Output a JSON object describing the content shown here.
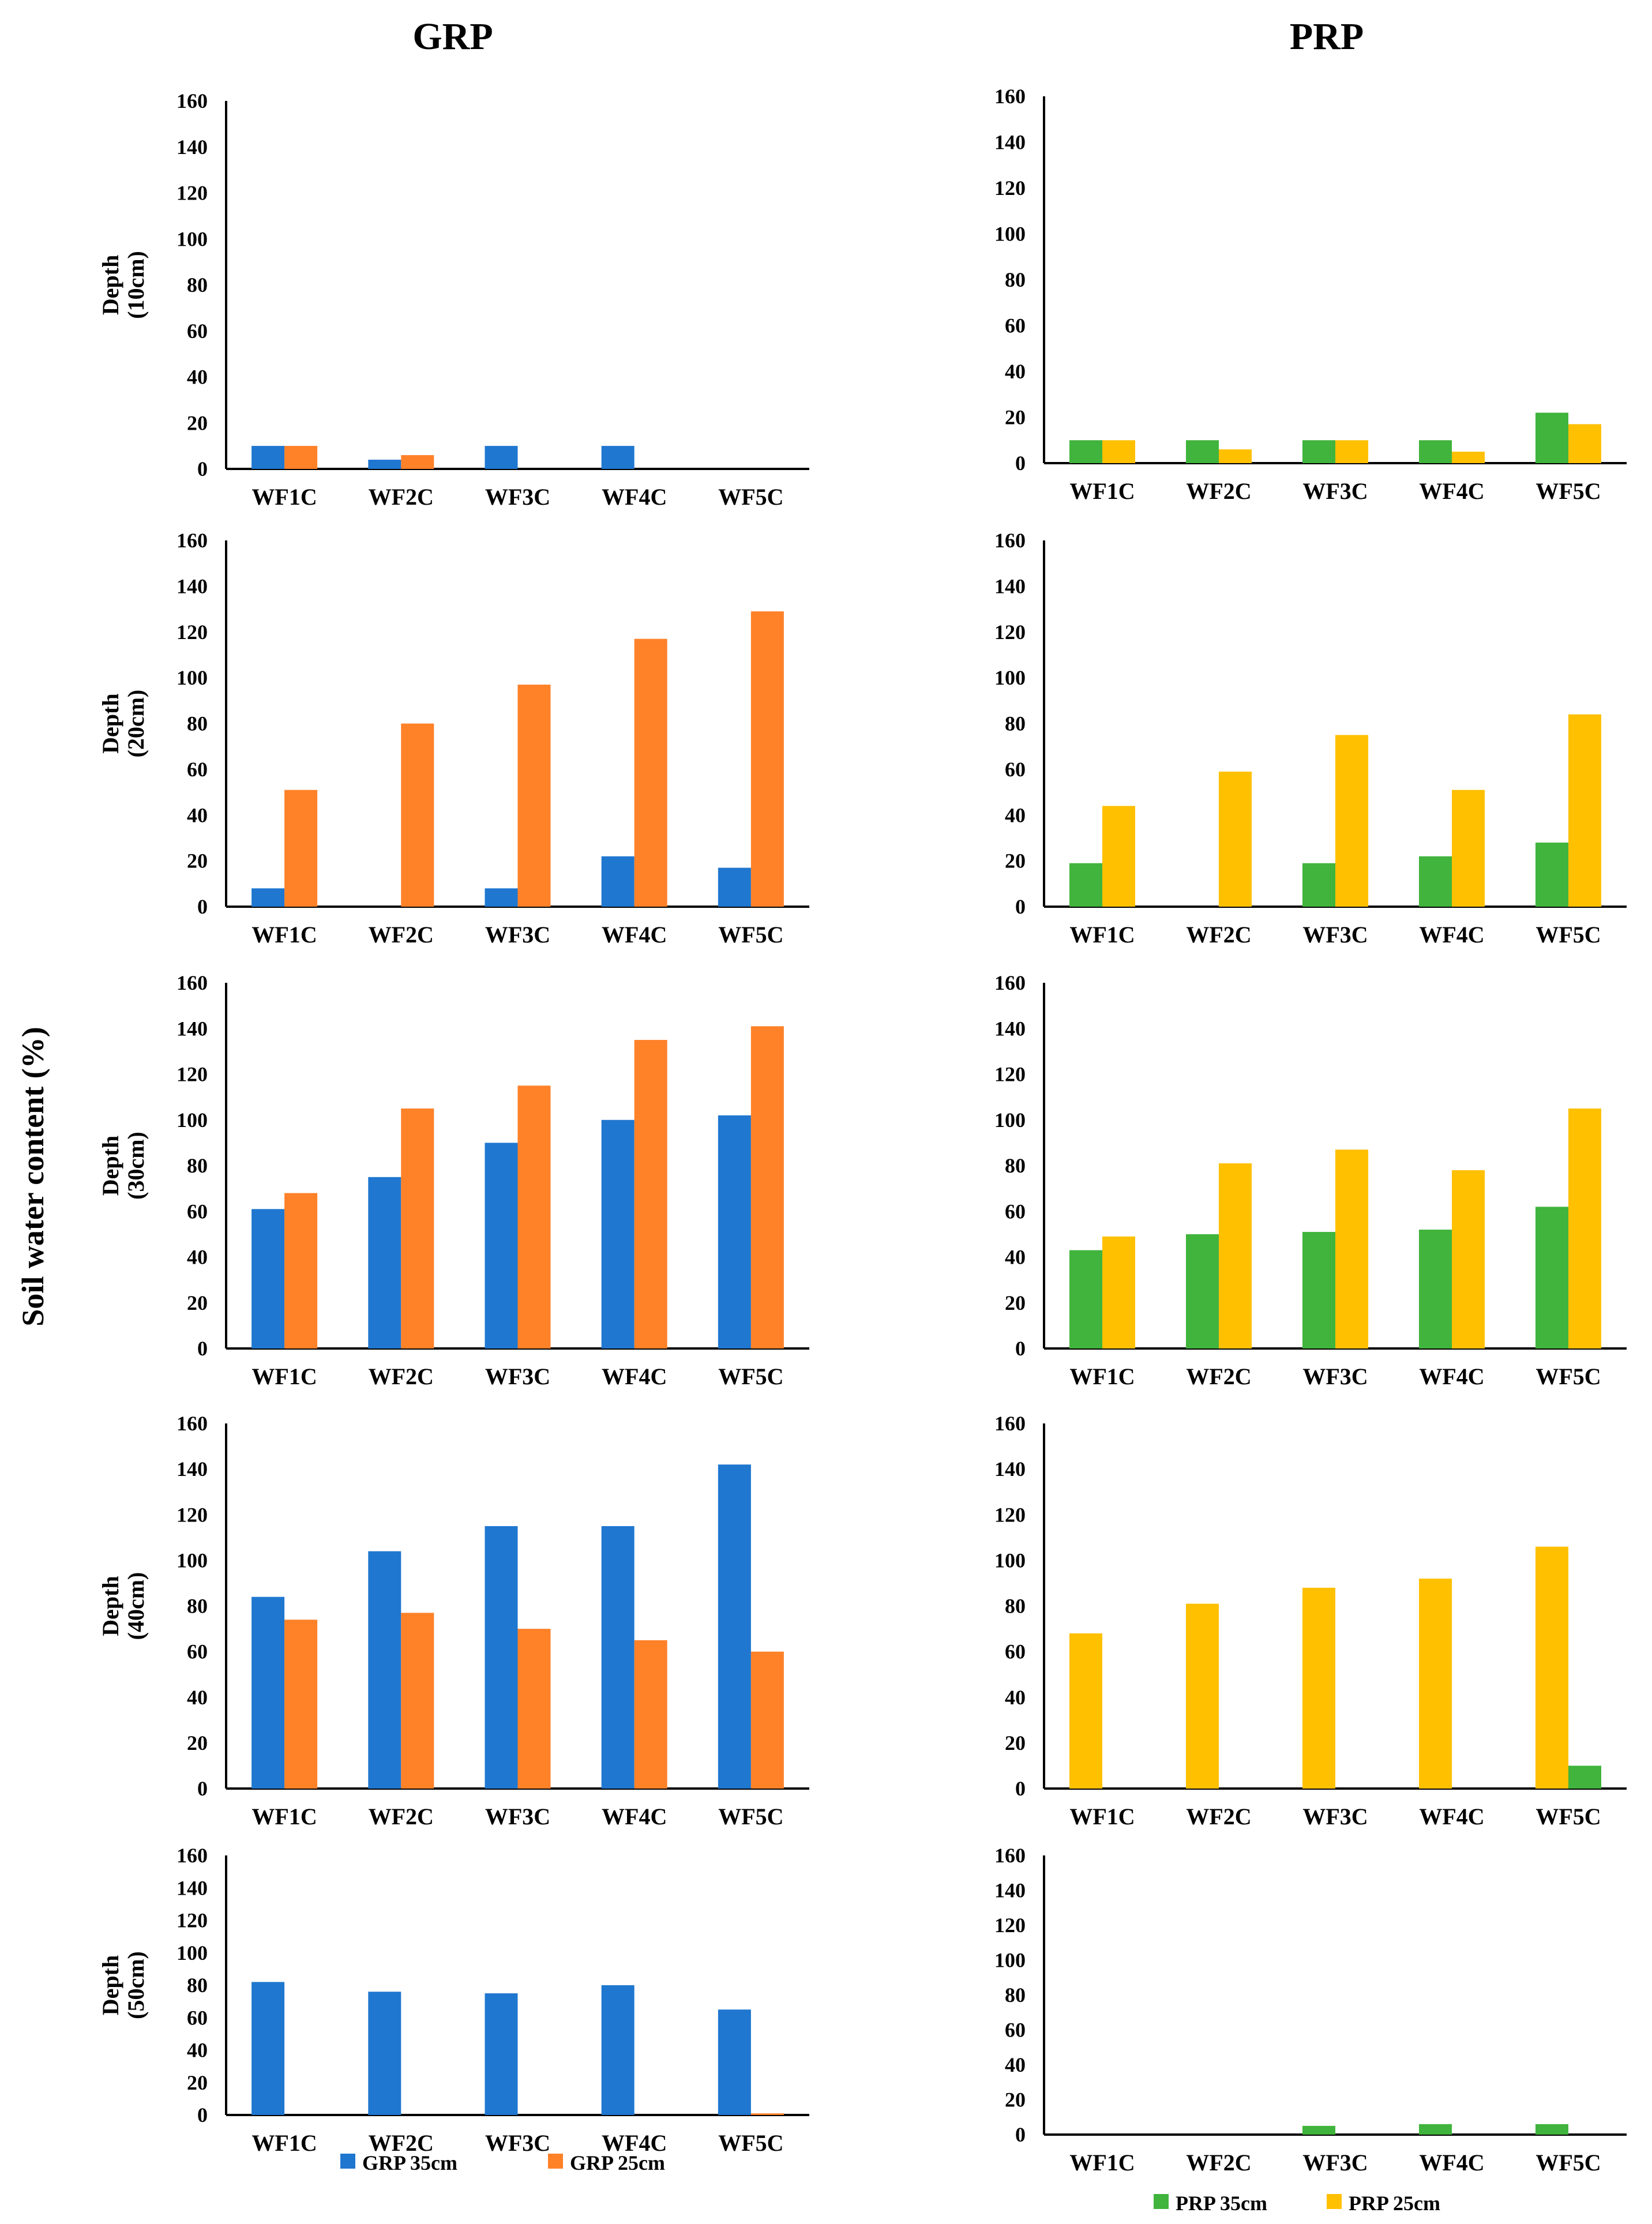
{
  "figure": {
    "left_title": "GRP",
    "right_title": "PRP",
    "y_label": "Soil water content (%)"
  },
  "legend": {
    "grp": [
      {
        "name": "GRP 35cm",
        "color": "#1F77D0"
      },
      {
        "name": "GRP 25cm",
        "color": "#FF8128"
      }
    ],
    "prp": [
      {
        "name": "PRP  35cm",
        "color": "#40B43C"
      },
      {
        "name": "PRP 25cm",
        "color": "#FFC000"
      }
    ]
  },
  "chart_data": [
    {
      "type": "bar",
      "group": "GRP",
      "panel": "10cm",
      "ylabel": "Depth (10cm)",
      "categories": [
        "WF1C",
        "WF2C",
        "WF3C",
        "WF4C",
        "WF5C"
      ],
      "series": [
        {
          "name": "GRP 35cm",
          "values": [
            10,
            4,
            10,
            10,
            0
          ]
        },
        {
          "name": "GRP 25cm",
          "values": [
            10,
            6,
            0,
            0,
            0
          ]
        }
      ],
      "yticks": [
        "0",
        "20",
        "40",
        "60",
        "80",
        "100",
        "120",
        "140",
        "160"
      ],
      "ylim": [
        0,
        160
      ]
    },
    {
      "type": "bar",
      "group": "PRP",
      "panel": "10cm",
      "ylabel": "",
      "categories": [
        "WF1C",
        "WF2C",
        "WF3C",
        "WF4C",
        "WF5C"
      ],
      "series": [
        {
          "name": "PRP  35cm",
          "values": [
            10,
            10,
            10,
            10,
            22
          ]
        },
        {
          "name": "PRP 25cm",
          "values": [
            10,
            6,
            10,
            5,
            17
          ]
        }
      ],
      "yticks": [
        "0",
        "20",
        "40",
        "60",
        "80",
        "100",
        "120",
        "140",
        "160"
      ],
      "ylim": [
        0,
        160
      ]
    },
    {
      "type": "bar",
      "group": "GRP",
      "panel": "20cm",
      "ylabel": "Depth (20cm)",
      "categories": [
        "WF1C",
        "WF2C",
        "WF3C",
        "WF4C",
        "WF5C"
      ],
      "series": [
        {
          "name": "GRP 35cm",
          "values": [
            8,
            0,
            8,
            22,
            17
          ]
        },
        {
          "name": "GRP 25cm",
          "values": [
            51,
            80,
            97,
            117,
            129
          ]
        }
      ],
      "yticks": [
        "0",
        "20",
        "40",
        "60",
        "80",
        "100",
        "120",
        "140",
        "160"
      ],
      "ylim": [
        0,
        160
      ]
    },
    {
      "type": "bar",
      "group": "PRP",
      "panel": "20cm",
      "ylabel": "",
      "categories": [
        "WF1C",
        "WF2C",
        "WF3C",
        "WF4C",
        "WF5C"
      ],
      "series": [
        {
          "name": "PRP  35cm",
          "values": [
            19,
            0,
            19,
            22,
            28
          ]
        },
        {
          "name": "PRP 25cm",
          "values": [
            44,
            59,
            75,
            51,
            84
          ]
        }
      ],
      "yticks": [
        "0",
        "20",
        "40",
        "60",
        "80",
        "100",
        "120",
        "140",
        "160"
      ],
      "ylim": [
        0,
        160
      ]
    },
    {
      "type": "bar",
      "group": "GRP",
      "panel": "30cm",
      "ylabel": "Depth (30cm)",
      "categories": [
        "WF1C",
        "WF2C",
        "WF3C",
        "WF4C",
        "WF5C"
      ],
      "series": [
        {
          "name": "GRP 35cm",
          "values": [
            61,
            75,
            90,
            100,
            102
          ]
        },
        {
          "name": "GRP 25cm",
          "values": [
            68,
            105,
            115,
            135,
            141
          ]
        }
      ],
      "yticks": [
        "0",
        "20",
        "40",
        "60",
        "80",
        "100",
        "120",
        "140",
        "160"
      ],
      "ylim": [
        0,
        160
      ]
    },
    {
      "type": "bar",
      "group": "PRP",
      "panel": "30cm",
      "ylabel": "",
      "categories": [
        "WF1C",
        "WF2C",
        "WF3C",
        "WF4C",
        "WF5C"
      ],
      "series": [
        {
          "name": "PRP  35cm",
          "values": [
            43,
            50,
            51,
            52,
            62
          ]
        },
        {
          "name": "PRP 25cm",
          "values": [
            49,
            81,
            87,
            78,
            105
          ]
        }
      ],
      "yticks": [
        "0",
        "20",
        "40",
        "60",
        "80",
        "100",
        "120",
        "140",
        "160"
      ],
      "ylim": [
        0,
        160
      ]
    },
    {
      "type": "bar",
      "group": "GRP",
      "panel": "40cm",
      "ylabel": "Depth (40cm)",
      "categories": [
        "WF1C",
        "WF2C",
        "WF3C",
        "WF4C",
        "WF5C"
      ],
      "series": [
        {
          "name": "GRP 35cm",
          "values": [
            84,
            104,
            115,
            115,
            142
          ]
        },
        {
          "name": "GRP 25cm",
          "values": [
            74,
            77,
            70,
            65,
            60
          ]
        }
      ],
      "yticks": [
        "0",
        "20",
        "40",
        "60",
        "80",
        "100",
        "120",
        "140",
        "160"
      ],
      "ylim": [
        0,
        160
      ]
    },
    {
      "type": "bar",
      "group": "PRP",
      "panel": "40cm",
      "ylabel": "",
      "categories": [
        "WF1C",
        "WF2C",
        "WF3C",
        "WF4C",
        "WF5C"
      ],
      "series": [
        {
          "name": "PRP 25cm",
          "values": [
            68,
            81,
            88,
            92,
            106
          ]
        },
        {
          "name": "PRP  35cm",
          "values": [
            0,
            0,
            0,
            0,
            10
          ]
        }
      ],
      "yticks": [
        "0",
        "20",
        "40",
        "60",
        "80",
        "100",
        "120",
        "140",
        "160"
      ],
      "ylim": [
        0,
        160
      ]
    },
    {
      "type": "bar",
      "group": "GRP",
      "panel": "50cm",
      "ylabel": "Depth (50cm)",
      "categories": [
        "WF1C",
        "WF2C",
        "WF3C",
        "WF4C",
        "WF5C"
      ],
      "series": [
        {
          "name": "GRP 35cm",
          "values": [
            82,
            76,
            75,
            80,
            65
          ]
        },
        {
          "name": "GRP 25cm",
          "values": [
            0,
            0,
            0,
            0,
            1
          ]
        }
      ],
      "yticks": [
        "0",
        "20",
        "40",
        "60",
        "80",
        "100",
        "120",
        "140",
        "160"
      ],
      "ylim": [
        0,
        160
      ]
    },
    {
      "type": "bar",
      "group": "PRP",
      "panel": "50cm",
      "ylabel": "",
      "categories": [
        "WF1C",
        "WF2C",
        "WF3C",
        "WF4C",
        "WF5C"
      ],
      "series": [
        {
          "name": "PRP  35cm",
          "values": [
            0,
            0,
            5,
            6,
            6
          ]
        },
        {
          "name": "PRP 25cm",
          "values": [
            0,
            0,
            0,
            0,
            0
          ]
        }
      ],
      "yticks": [
        "0",
        "20",
        "40",
        "60",
        "80",
        "100",
        "120",
        "140",
        "160"
      ],
      "ylim": [
        0,
        160
      ]
    }
  ]
}
